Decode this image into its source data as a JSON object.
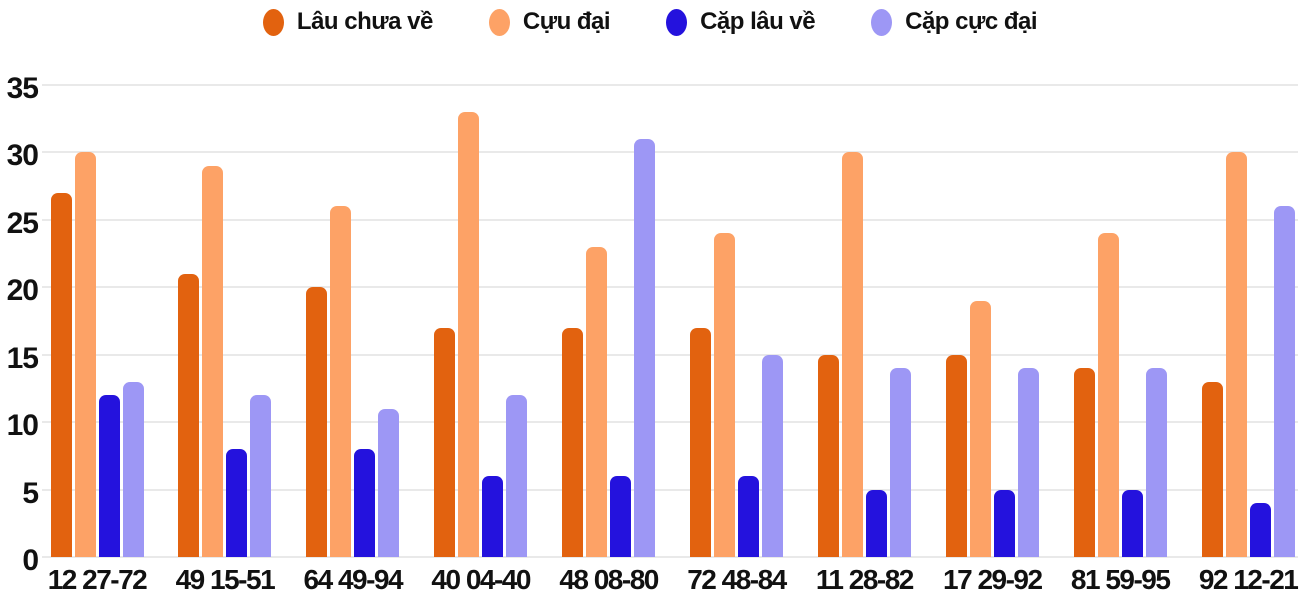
{
  "chart_data": {
    "type": "bar",
    "title": "",
    "xlabel": "",
    "ylabel": "",
    "categories": [
      "12 27-72",
      "49 15-51",
      "64 49-94",
      "40 04-40",
      "48 08-80",
      "72 48-84",
      "11 28-82",
      "17 29-92",
      "81 59-95",
      "92 12-21"
    ],
    "series": [
      {
        "name": "Lâu chưa về",
        "color": "#e2620f",
        "values": [
          27,
          21,
          20,
          17,
          17,
          17,
          15,
          15,
          14,
          13
        ]
      },
      {
        "name": "Cựu đại",
        "color": "#fda266",
        "values": [
          30,
          29,
          26,
          33,
          23,
          24,
          30,
          19,
          24,
          30
        ]
      },
      {
        "name": "Cặp lâu về",
        "color": "#2412dd",
        "values": [
          12,
          8,
          8,
          6,
          6,
          6,
          5,
          5,
          5,
          4
        ]
      },
      {
        "name": "Cặp cực đại",
        "color": "#9d97f5",
        "values": [
          13,
          12,
          11,
          12,
          31,
          15,
          14,
          14,
          14,
          26
        ]
      }
    ],
    "ylim": [
      0,
      35
    ],
    "yticks": [
      0,
      5,
      10,
      15,
      20,
      25,
      30,
      35
    ],
    "grid": true,
    "legend_position": "top",
    "background": "#ffffff",
    "text_color": "#111111",
    "grid_color": "#e9e9e9"
  }
}
